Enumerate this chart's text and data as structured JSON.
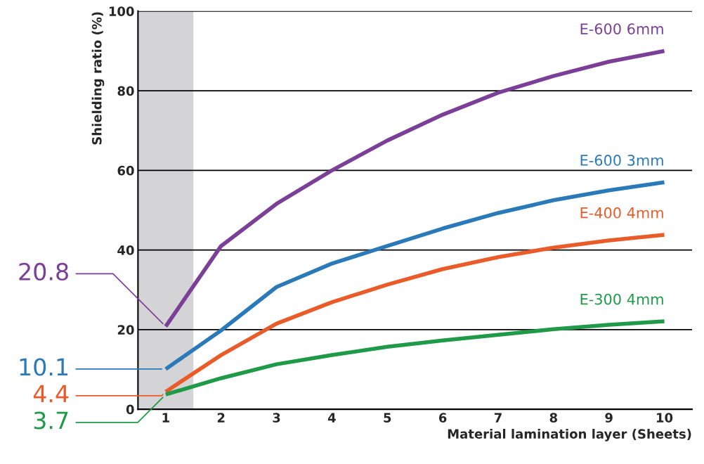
{
  "chart_data": {
    "type": "line",
    "xlabel": "Material lamination layer (Sheets)",
    "ylabel": "Shielding ratio (%)",
    "x": [
      1,
      2,
      3,
      4,
      5,
      6,
      7,
      8,
      9,
      10
    ],
    "xlim": [
      0.5,
      10.5
    ],
    "xticks": [
      1,
      2,
      3,
      4,
      5,
      6,
      7,
      8,
      9,
      10
    ],
    "ylim": [
      0,
      100
    ],
    "yticks": [
      0,
      20,
      40,
      60,
      80,
      100
    ],
    "grid": "y",
    "legend": false,
    "marker": "none",
    "line_style": "solid",
    "bands": [
      {
        "axis": "x",
        "from": 0.5,
        "to": 1.5,
        "color": "#d4d4d6"
      }
    ],
    "series": [
      {
        "name": "E-600 6mm",
        "color": "#7b3f98",
        "values": [
          20.8,
          41,
          51.6,
          60,
          67.5,
          74,
          79.5,
          83.7,
          87.3,
          90
        ],
        "value_labels": [
          "20.8",
          null,
          null,
          null,
          null,
          null,
          null,
          null,
          null,
          null
        ]
      },
      {
        "name": "E-600 3mm",
        "color": "#2a7ab9",
        "values": [
          10.1,
          19.8,
          30.7,
          36.6,
          41,
          45.4,
          49.3,
          52.5,
          55,
          57
        ],
        "value_labels": [
          "10.1",
          null,
          null,
          null,
          null,
          null,
          null,
          null,
          null,
          null
        ]
      },
      {
        "name": "E-400 4mm",
        "color": "#ea5b2a",
        "values": [
          4.4,
          13.6,
          21.5,
          26.9,
          31.3,
          35.2,
          38.2,
          40.6,
          42.4,
          43.8
        ],
        "value_labels": [
          "4.4",
          null,
          null,
          null,
          null,
          null,
          null,
          null,
          null,
          null
        ]
      },
      {
        "name": "E-300 4mm",
        "color": "#1e9a48",
        "values": [
          3.7,
          7.8,
          11.3,
          13.6,
          15.7,
          17.3,
          18.7,
          20.1,
          21.2,
          22.1
        ],
        "value_labels": [
          "3.7",
          null,
          null,
          null,
          null,
          null,
          null,
          null,
          null,
          null
        ]
      }
    ]
  }
}
